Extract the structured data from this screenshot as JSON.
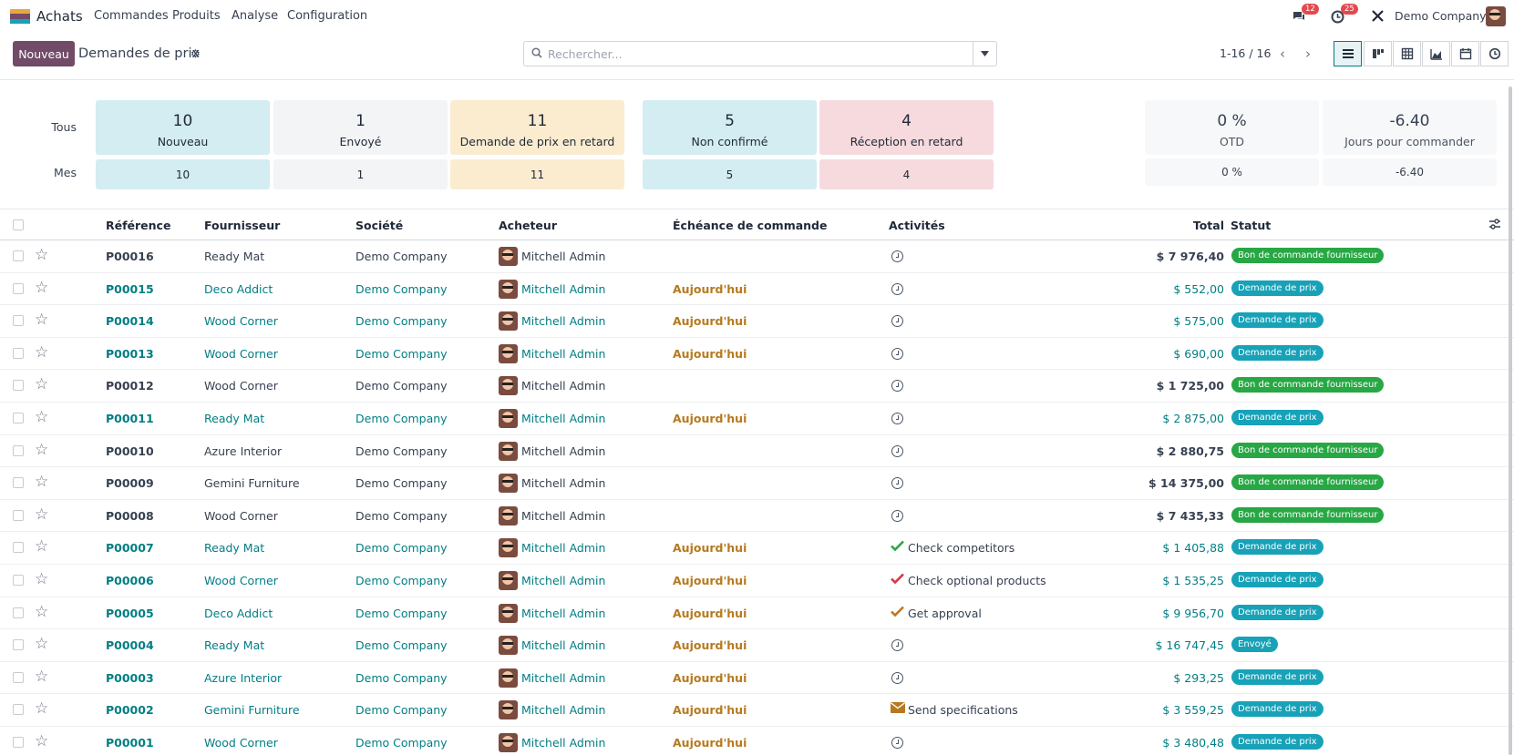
{
  "navbar": {
    "app_name": "Achats",
    "menu": [
      "Commandes",
      "Produits",
      "Analyse",
      "Configuration"
    ],
    "messages_count": "12",
    "activities_count": "25",
    "company": "Demo Company"
  },
  "control": {
    "new_label": "Nouveau",
    "title": "Demandes de prix",
    "search_placeholder": "Rechercher...",
    "pager": "1-16 / 16"
  },
  "dashboard": {
    "row_all_label": "Tous",
    "row_mine_label": "Mes",
    "tiles": [
      {
        "value": "10",
        "label": "Nouveau",
        "mine": "10",
        "color": "#d3edf2"
      },
      {
        "value": "1",
        "label": "Envoyé",
        "mine": "1",
        "color": "#f3f4f6"
      },
      {
        "value": "11",
        "label": "Demande de prix en retard",
        "mine": "11",
        "color": "#fbecd0"
      },
      {
        "value": "5",
        "label": "Non confirmé",
        "mine": "5",
        "color": "#d3edf2"
      },
      {
        "value": "4",
        "label": "Réception en retard",
        "mine": "4",
        "color": "#f6dadd"
      }
    ],
    "kpis": [
      {
        "value": "0 %",
        "label": "OTD",
        "mine": "0 %"
      },
      {
        "value": "-6.40",
        "label": "Jours pour commander",
        "mine": "-6.40"
      }
    ]
  },
  "table": {
    "headers": {
      "reference": "Référence",
      "vendor": "Fournisseur",
      "company": "Société",
      "buyer": "Acheteur",
      "deadline": "Échéance de commande",
      "activities": "Activités",
      "total": "Total",
      "status": "Statut"
    },
    "rows": [
      {
        "ref": "P00016",
        "vendor": "Ready Mat",
        "company": "Demo Company",
        "buyer": "Mitchell Admin",
        "deadline": "",
        "activity": "",
        "activity_icon": "clock-icon",
        "total": "$ 7 976,40",
        "status": "Bon de commande fournisseur",
        "status_color": "#28a745",
        "is_rfq": false
      },
      {
        "ref": "P00015",
        "vendor": "Deco Addict",
        "company": "Demo Company",
        "buyer": "Mitchell Admin",
        "deadline": "Aujourd'hui",
        "activity": "",
        "activity_icon": "clock-icon",
        "total": "$ 552,00",
        "status": "Demande de prix",
        "status_color": "#17a2b8",
        "is_rfq": true
      },
      {
        "ref": "P00014",
        "vendor": "Wood Corner",
        "company": "Demo Company",
        "buyer": "Mitchell Admin",
        "deadline": "Aujourd'hui",
        "activity": "",
        "activity_icon": "clock-icon",
        "total": "$ 575,00",
        "status": "Demande de prix",
        "status_color": "#17a2b8",
        "is_rfq": true
      },
      {
        "ref": "P00013",
        "vendor": "Wood Corner",
        "company": "Demo Company",
        "buyer": "Mitchell Admin",
        "deadline": "Aujourd'hui",
        "activity": "",
        "activity_icon": "clock-icon",
        "total": "$ 690,00",
        "status": "Demande de prix",
        "status_color": "#17a2b8",
        "is_rfq": true
      },
      {
        "ref": "P00012",
        "vendor": "Wood Corner",
        "company": "Demo Company",
        "buyer": "Mitchell Admin",
        "deadline": "",
        "activity": "",
        "activity_icon": "clock-icon",
        "total": "$ 1 725,00",
        "status": "Bon de commande fournisseur",
        "status_color": "#28a745",
        "is_rfq": false
      },
      {
        "ref": "P00011",
        "vendor": "Ready Mat",
        "company": "Demo Company",
        "buyer": "Mitchell Admin",
        "deadline": "Aujourd'hui",
        "activity": "",
        "activity_icon": "clock-icon",
        "total": "$ 2 875,00",
        "status": "Demande de prix",
        "status_color": "#17a2b8",
        "is_rfq": true
      },
      {
        "ref": "P00010",
        "vendor": "Azure Interior",
        "company": "Demo Company",
        "buyer": "Mitchell Admin",
        "deadline": "",
        "activity": "",
        "activity_icon": "clock-icon",
        "total": "$ 2 880,75",
        "status": "Bon de commande fournisseur",
        "status_color": "#28a745",
        "is_rfq": false
      },
      {
        "ref": "P00009",
        "vendor": "Gemini Furniture",
        "company": "Demo Company",
        "buyer": "Mitchell Admin",
        "deadline": "",
        "activity": "",
        "activity_icon": "clock-icon",
        "total": "$ 14 375,00",
        "status": "Bon de commande fournisseur",
        "status_color": "#28a745",
        "is_rfq": false
      },
      {
        "ref": "P00008",
        "vendor": "Wood Corner",
        "company": "Demo Company",
        "buyer": "Mitchell Admin",
        "deadline": "",
        "activity": "",
        "activity_icon": "clock-icon",
        "total": "$ 7 435,33",
        "status": "Bon de commande fournisseur",
        "status_color": "#28a745",
        "is_rfq": false
      },
      {
        "ref": "P00007",
        "vendor": "Ready Mat",
        "company": "Demo Company",
        "buyer": "Mitchell Admin",
        "deadline": "Aujourd'hui",
        "activity": "Check competitors",
        "activity_icon": "check-icon-green",
        "total": "$ 1 405,88",
        "status": "Demande de prix",
        "status_color": "#17a2b8",
        "is_rfq": true
      },
      {
        "ref": "P00006",
        "vendor": "Wood Corner",
        "company": "Demo Company",
        "buyer": "Mitchell Admin",
        "deadline": "Aujourd'hui",
        "activity": "Check optional products",
        "activity_icon": "check-icon-red",
        "total": "$ 1 535,25",
        "status": "Demande de prix",
        "status_color": "#17a2b8",
        "is_rfq": true
      },
      {
        "ref": "P00005",
        "vendor": "Deco Addict",
        "company": "Demo Company",
        "buyer": "Mitchell Admin",
        "deadline": "Aujourd'hui",
        "activity": "Get approval",
        "activity_icon": "check-icon-yellow",
        "total": "$ 9 956,70",
        "status": "Demande de prix",
        "status_color": "#17a2b8",
        "is_rfq": true
      },
      {
        "ref": "P00004",
        "vendor": "Ready Mat",
        "company": "Demo Company",
        "buyer": "Mitchell Admin",
        "deadline": "Aujourd'hui",
        "activity": "",
        "activity_icon": "clock-icon",
        "total": "$ 16 747,45",
        "status": "Envoyé",
        "status_color": "#17a2b8",
        "is_rfq": true
      },
      {
        "ref": "P00003",
        "vendor": "Azure Interior",
        "company": "Demo Company",
        "buyer": "Mitchell Admin",
        "deadline": "Aujourd'hui",
        "activity": "",
        "activity_icon": "clock-icon",
        "total": "$ 293,25",
        "status": "Demande de prix",
        "status_color": "#17a2b8",
        "is_rfq": true
      },
      {
        "ref": "P00002",
        "vendor": "Gemini Furniture",
        "company": "Demo Company",
        "buyer": "Mitchell Admin",
        "deadline": "Aujourd'hui",
        "activity": "Send specifications",
        "activity_icon": "envelope-icon",
        "total": "$ 3 559,25",
        "status": "Demande de prix",
        "status_color": "#17a2b8",
        "is_rfq": true
      },
      {
        "ref": "P00001",
        "vendor": "Wood Corner",
        "company": "Demo Company",
        "buyer": "Mitchell Admin",
        "deadline": "Aujourd'hui",
        "activity": "",
        "activity_icon": "clock-icon",
        "total": "$ 3 480,48",
        "status": "Demande de prix",
        "status_color": "#17a2b8",
        "is_rfq": true
      }
    ]
  }
}
